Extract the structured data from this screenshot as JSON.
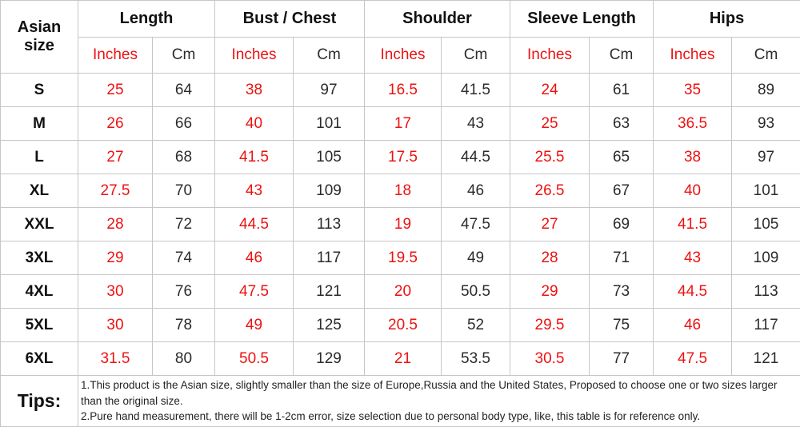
{
  "chart_data": {
    "type": "table",
    "corner_header": "Asian size",
    "column_groups": [
      "Length",
      "Bust / Chest",
      "Shoulder",
      "Sleeve Length",
      "Hips"
    ],
    "unit_subheaders": [
      "Inches",
      "Cm"
    ],
    "row_labels": [
      "S",
      "M",
      "L",
      "XL",
      "XXL",
      "3XL",
      "4XL",
      "5XL",
      "6XL"
    ],
    "rows": [
      [
        25,
        64,
        38,
        97,
        16.5,
        41.5,
        24,
        61,
        35,
        89
      ],
      [
        26,
        66,
        40,
        101,
        17,
        43,
        25,
        63,
        36.5,
        93
      ],
      [
        27,
        68,
        41.5,
        105,
        17.5,
        44.5,
        25.5,
        65,
        38,
        97
      ],
      [
        27.5,
        70,
        43,
        109,
        18,
        46,
        26.5,
        67,
        40,
        101
      ],
      [
        28,
        72,
        44.5,
        113,
        19,
        47.5,
        27,
        69,
        41.5,
        105
      ],
      [
        29,
        74,
        46,
        117,
        19.5,
        49,
        28,
        71,
        43,
        109
      ],
      [
        30,
        76,
        47.5,
        121,
        20,
        50.5,
        29,
        73,
        44.5,
        113
      ],
      [
        30,
        78,
        49,
        125,
        20.5,
        52,
        29.5,
        75,
        46,
        117
      ],
      [
        31.5,
        80,
        50.5,
        129,
        21,
        53.5,
        30.5,
        77,
        47.5,
        121
      ]
    ],
    "tips_label": "Tips:",
    "tips": [
      "1.This product is the Asian size, slightly smaller than the size of Europe,Russia and the United States, Proposed to choose one or two sizes larger than the original size.",
      "2.Pure hand measurement, there will be 1-2cm error, size selection due to personal body type, like, this table is for reference only."
    ]
  },
  "colors": {
    "inches_accent_red": "#ee1111",
    "text_black": "#111111",
    "grid_border_gray": "#c6c6c6",
    "background": "#ffffff"
  }
}
